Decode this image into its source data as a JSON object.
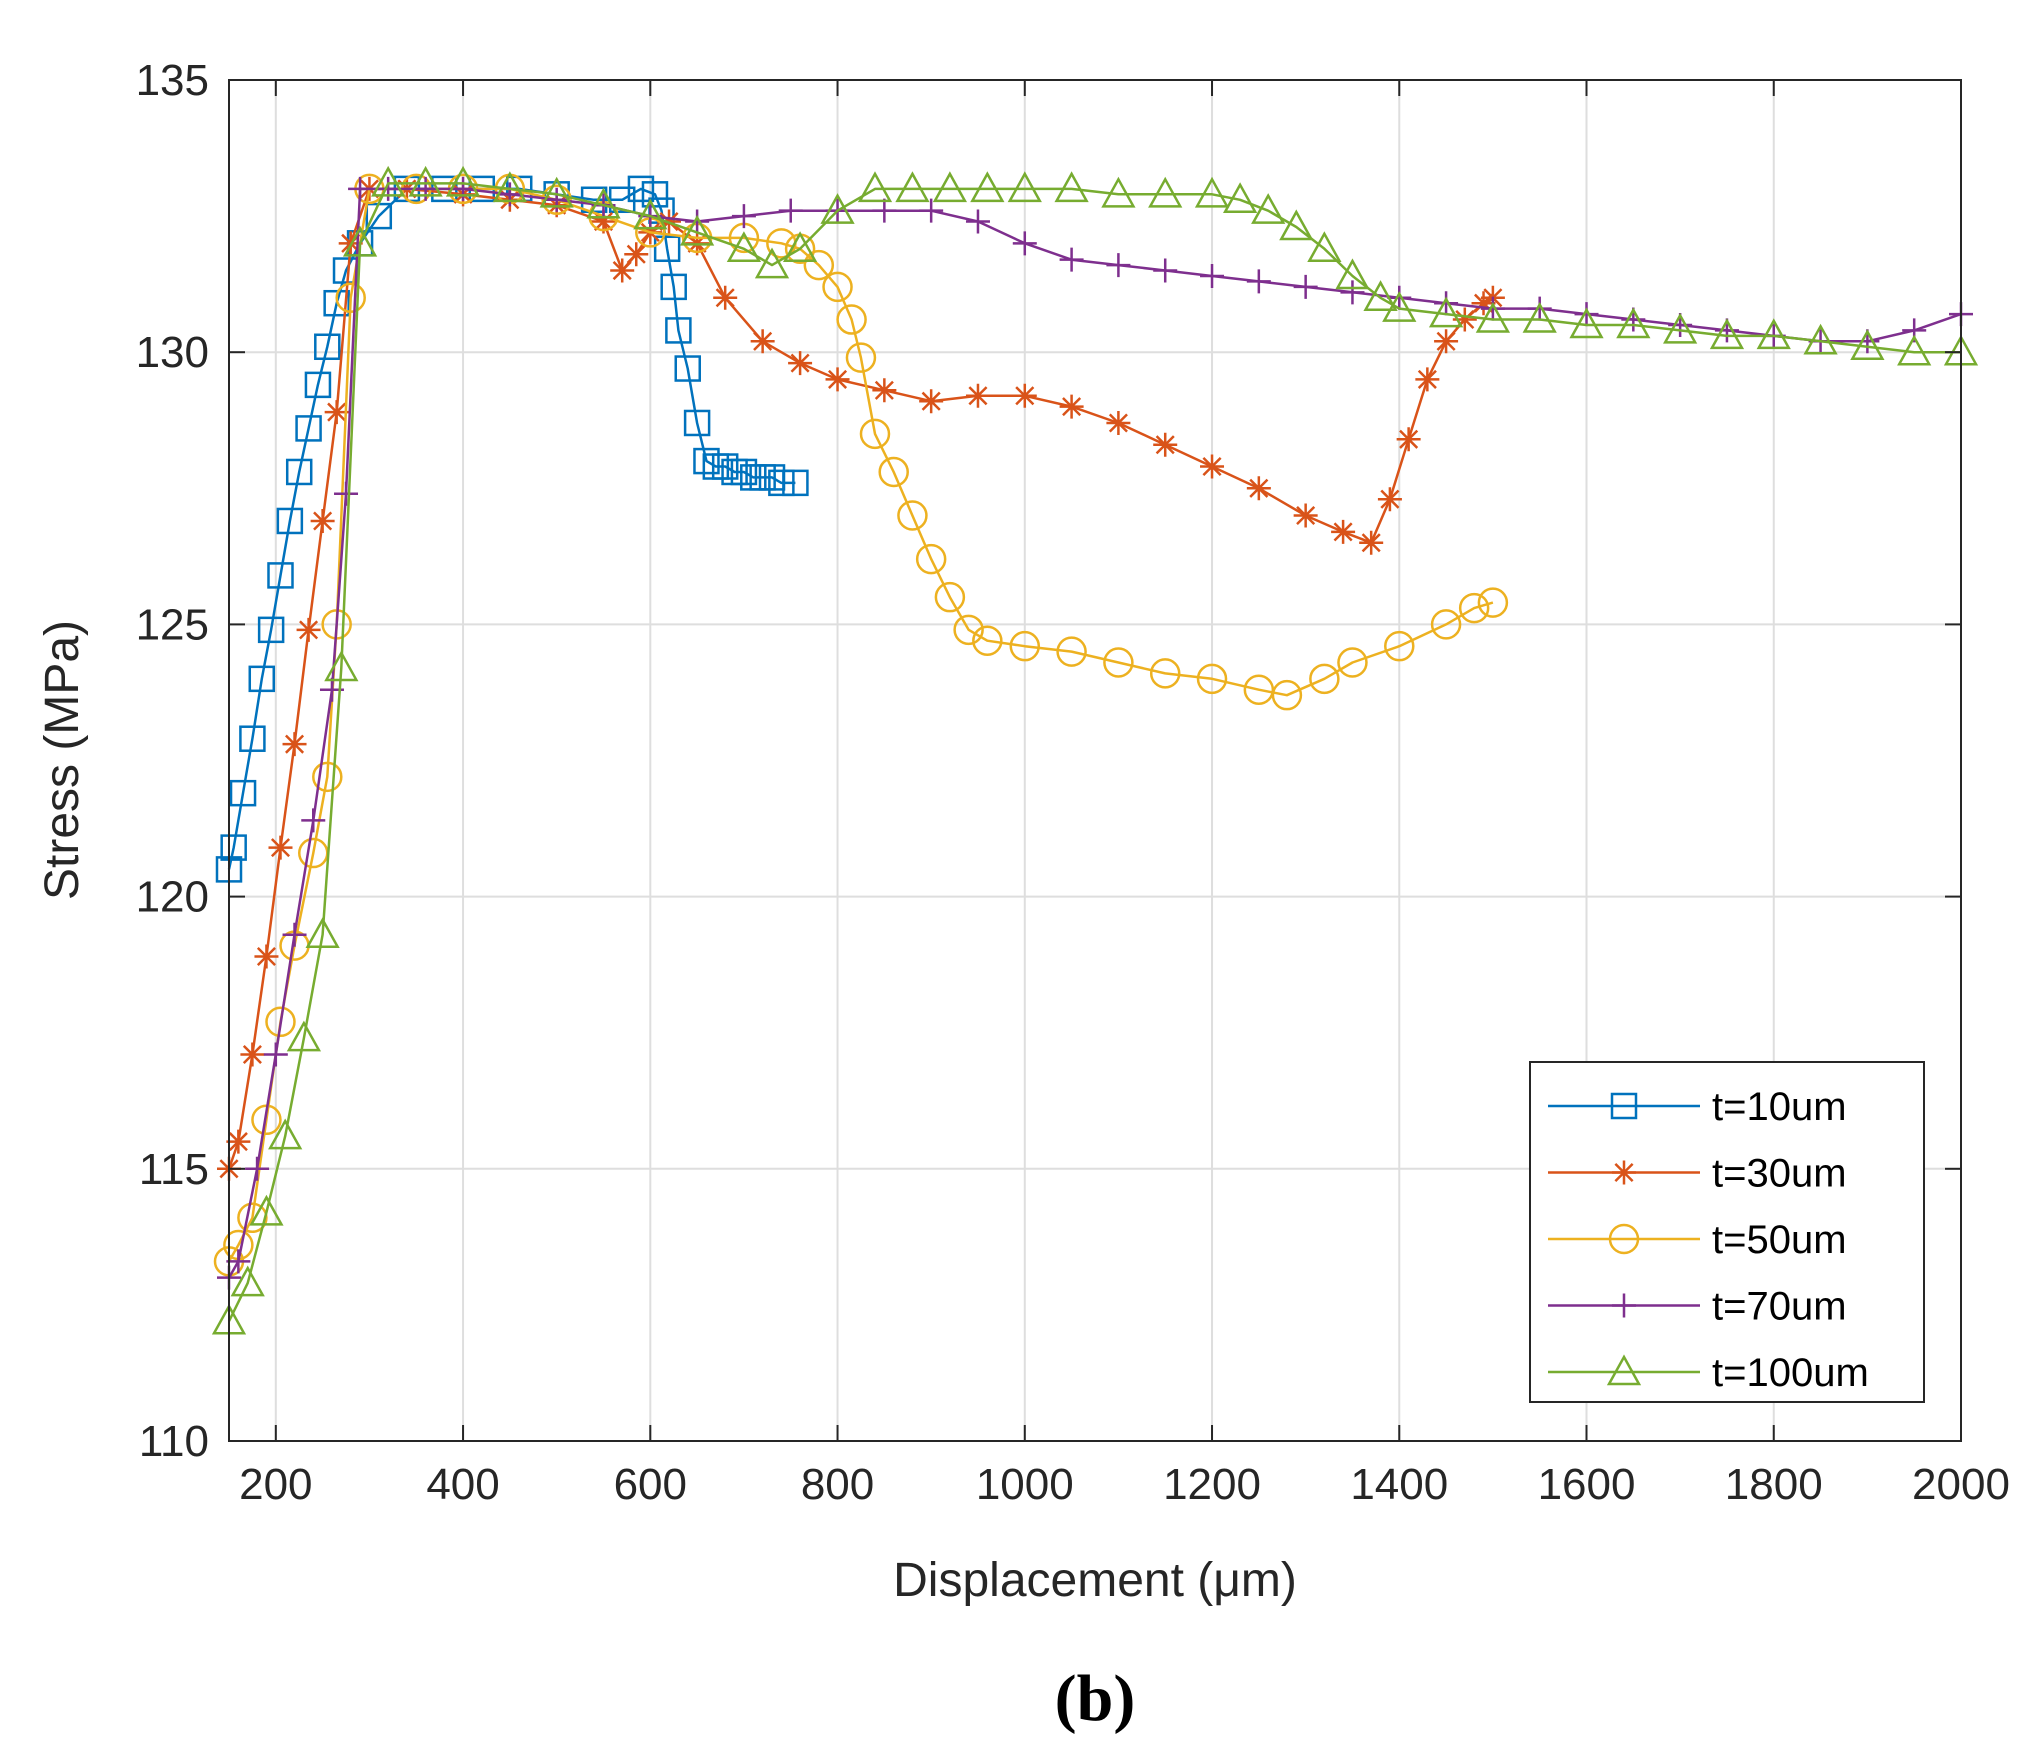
{
  "chart_data": {
    "type": "line",
    "title": "",
    "xlabel": "Displacement (μm)",
    "ylabel": "Stress (MPa)",
    "xlim": [
      150,
      2000
    ],
    "ylim": [
      110,
      135
    ],
    "xticks": [
      200,
      400,
      600,
      800,
      1000,
      1200,
      1400,
      1600,
      1800,
      2000
    ],
    "yticks": [
      110,
      115,
      120,
      125,
      130,
      135
    ],
    "xtick_labels": [
      "200",
      "400",
      "600",
      "800",
      "1000",
      "1200",
      "1400",
      "1600",
      "1800",
      "2000"
    ],
    "ytick_labels": [
      "110",
      "115",
      "120",
      "125",
      "130",
      "135"
    ],
    "grid": true,
    "legend_position": "bottom-right",
    "panel_label": "(b)",
    "series": [
      {
        "name": "t=10um",
        "color": "#0072BD",
        "marker": "square",
        "x": [
          150,
          155,
          165,
          175,
          185,
          195,
          205,
          215,
          225,
          235,
          245,
          255,
          265,
          275,
          290,
          310,
          340,
          380,
          420,
          460,
          500,
          540,
          570,
          590,
          605,
          612,
          618,
          625,
          630,
          640,
          650,
          660,
          670,
          680,
          690,
          700,
          710,
          720,
          730,
          740,
          755
        ],
        "y": [
          120.5,
          120.9,
          121.9,
          122.9,
          124.0,
          124.9,
          125.9,
          126.9,
          127.8,
          128.6,
          129.4,
          130.1,
          130.9,
          131.5,
          132.0,
          132.5,
          133.0,
          133.0,
          133.0,
          133.0,
          132.9,
          132.8,
          132.8,
          133.0,
          132.9,
          132.6,
          131.9,
          131.2,
          130.4,
          129.7,
          128.7,
          128.0,
          127.9,
          127.9,
          127.8,
          127.8,
          127.7,
          127.7,
          127.7,
          127.6,
          127.6
        ]
      },
      {
        "name": "t=30um",
        "color": "#D95319",
        "marker": "asterisk",
        "x": [
          150,
          160,
          175,
          190,
          205,
          220,
          235,
          250,
          265,
          280,
          300,
          340,
          400,
          450,
          500,
          550,
          570,
          585,
          600,
          620,
          650,
          680,
          720,
          760,
          800,
          850,
          900,
          950,
          1000,
          1050,
          1100,
          1150,
          1200,
          1250,
          1300,
          1340,
          1370,
          1390,
          1410,
          1430,
          1450,
          1470,
          1490,
          1500
        ],
        "y": [
          115.0,
          115.5,
          117.1,
          118.9,
          120.9,
          122.8,
          124.9,
          126.9,
          128.9,
          132.0,
          133.0,
          133.0,
          132.9,
          132.8,
          132.7,
          132.4,
          131.5,
          131.8,
          132.2,
          132.4,
          132.0,
          131.0,
          130.2,
          129.8,
          129.5,
          129.3,
          129.1,
          129.2,
          129.2,
          129.0,
          128.7,
          128.3,
          127.9,
          127.5,
          127.0,
          126.7,
          126.5,
          127.3,
          128.4,
          129.5,
          130.2,
          130.6,
          130.9,
          131.0
        ]
      },
      {
        "name": "t=50um",
        "color": "#EDB120",
        "marker": "circle",
        "x": [
          150,
          160,
          175,
          190,
          205,
          220,
          240,
          255,
          265,
          280,
          300,
          350,
          400,
          450,
          500,
          550,
          600,
          650,
          700,
          740,
          760,
          780,
          800,
          815,
          825,
          840,
          860,
          880,
          900,
          920,
          940,
          960,
          1000,
          1050,
          1100,
          1150,
          1200,
          1250,
          1280,
          1320,
          1350,
          1400,
          1450,
          1480,
          1500
        ],
        "y": [
          113.3,
          113.6,
          114.1,
          115.9,
          117.7,
          119.1,
          120.8,
          122.2,
          125.0,
          131.0,
          133.0,
          133.0,
          133.0,
          133.0,
          132.8,
          132.5,
          132.2,
          132.1,
          132.1,
          132.0,
          131.9,
          131.6,
          131.2,
          130.6,
          129.9,
          128.5,
          127.8,
          127.0,
          126.2,
          125.5,
          124.9,
          124.7,
          124.6,
          124.5,
          124.3,
          124.1,
          124.0,
          123.8,
          123.7,
          124.0,
          124.3,
          124.6,
          125.0,
          125.3,
          125.4
        ]
      },
      {
        "name": "t=70um",
        "color": "#7E2F8E",
        "marker": "plus",
        "x": [
          150,
          160,
          180,
          200,
          220,
          240,
          260,
          275,
          290,
          320,
          360,
          400,
          450,
          500,
          550,
          600,
          650,
          700,
          750,
          800,
          850,
          900,
          950,
          1000,
          1050,
          1100,
          1150,
          1200,
          1250,
          1300,
          1350,
          1400,
          1450,
          1500,
          1550,
          1600,
          1650,
          1700,
          1750,
          1800,
          1850,
          1900,
          1950,
          2000
        ],
        "y": [
          113.0,
          113.3,
          115.0,
          117.1,
          119.3,
          121.4,
          123.8,
          127.4,
          133.0,
          133.0,
          133.0,
          133.0,
          132.9,
          132.8,
          132.7,
          132.5,
          132.4,
          132.5,
          132.6,
          132.6,
          132.6,
          132.6,
          132.4,
          132.0,
          131.7,
          131.6,
          131.5,
          131.4,
          131.3,
          131.2,
          131.1,
          131.0,
          130.9,
          130.8,
          130.8,
          130.7,
          130.6,
          130.5,
          130.4,
          130.3,
          130.2,
          130.2,
          130.4,
          130.7
        ]
      },
      {
        "name": "t=100um",
        "color": "#77AC30",
        "marker": "triangle",
        "x": [
          150,
          170,
          190,
          210,
          230,
          250,
          270,
          290,
          320,
          360,
          400,
          450,
          500,
          550,
          600,
          650,
          700,
          730,
          760,
          800,
          840,
          880,
          920,
          960,
          1000,
          1050,
          1100,
          1150,
          1200,
          1230,
          1260,
          1290,
          1320,
          1350,
          1380,
          1400,
          1450,
          1500,
          1550,
          1600,
          1650,
          1700,
          1750,
          1800,
          1850,
          1900,
          1950,
          2000
        ],
        "y": [
          112.2,
          112.9,
          114.2,
          115.6,
          117.4,
          119.3,
          124.2,
          132.0,
          133.1,
          133.1,
          133.1,
          133.0,
          132.9,
          132.7,
          132.5,
          132.2,
          131.9,
          131.6,
          131.9,
          132.6,
          133.0,
          133.0,
          133.0,
          133.0,
          133.0,
          133.0,
          132.9,
          132.9,
          132.9,
          132.8,
          132.6,
          132.3,
          131.9,
          131.4,
          131.0,
          130.8,
          130.7,
          130.6,
          130.6,
          130.5,
          130.5,
          130.4,
          130.3,
          130.3,
          130.2,
          130.1,
          130.0,
          130.0
        ]
      }
    ]
  }
}
